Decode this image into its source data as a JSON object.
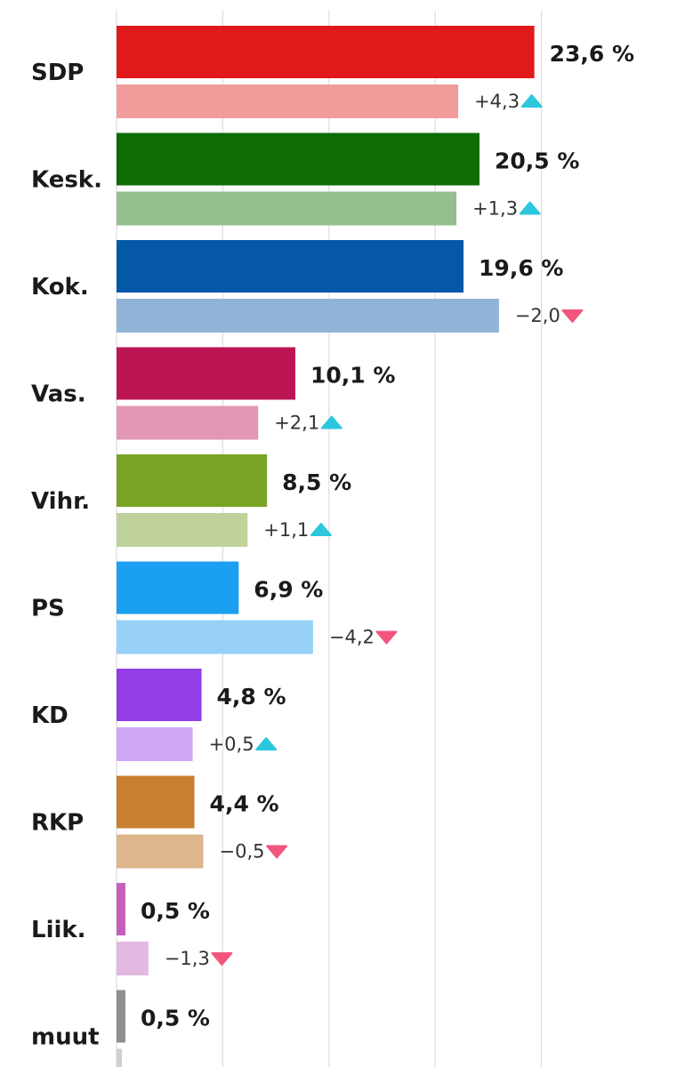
{
  "chart_data": {
    "type": "bar",
    "orientation": "horizontal",
    "title": "",
    "xlabel": "",
    "ylabel": "",
    "xlim": [
      0,
      25
    ],
    "grid": true,
    "unit": "%",
    "categories": [
      "SDP",
      "Kesk.",
      "Kok.",
      "Vas.",
      "Vihr.",
      "PS",
      "KD",
      "RKP",
      "Liik.",
      "muut"
    ],
    "series": [
      {
        "name": "current",
        "values": [
          23.6,
          20.5,
          19.6,
          10.1,
          8.5,
          6.9,
          4.8,
          4.4,
          0.5,
          0.5
        ],
        "labels": [
          "23,6 %",
          "20,5 %",
          "19,6 %",
          "10,1 %",
          "8,5 %",
          "6,9 %",
          "4,8 %",
          "4,4 %",
          "0,5 %",
          "0,5 %"
        ]
      },
      {
        "name": "previous",
        "values": [
          19.3,
          19.2,
          21.6,
          8.0,
          7.4,
          11.1,
          4.3,
          4.9,
          1.8,
          0.3
        ]
      }
    ],
    "changes": [
      {
        "label": "+4,3",
        "direction": "up"
      },
      {
        "label": "+1,3",
        "direction": "up"
      },
      {
        "label": "−2,0",
        "direction": "down"
      },
      {
        "label": "+2,1",
        "direction": "up"
      },
      {
        "label": "+1,1",
        "direction": "up"
      },
      {
        "label": "−4,2",
        "direction": "down"
      },
      {
        "label": "+0,5",
        "direction": "up"
      },
      {
        "label": "−0,5",
        "direction": "down"
      },
      {
        "label": "−1,3",
        "direction": "down"
      },
      {
        "label": "",
        "direction": "none"
      }
    ],
    "colors": {
      "current": [
        "#e0191b",
        "#0e6b06",
        "#0558a8",
        "#bb1653",
        "#78a325",
        "#1b9ff0",
        "#923de6",
        "#c97f30",
        "#c55fbc",
        "#8e8e8e"
      ],
      "previous": [
        "#f19d9c",
        "#93bf8f",
        "#8fb4d8",
        "#e197b5",
        "#c0d29b",
        "#98d1f7",
        "#cfa7f5",
        "#deb68c",
        "#e3b9e1",
        "#cfcfcf"
      ],
      "up_arrow": "#2cc7dd",
      "down_arrow": "#f2567d"
    }
  }
}
